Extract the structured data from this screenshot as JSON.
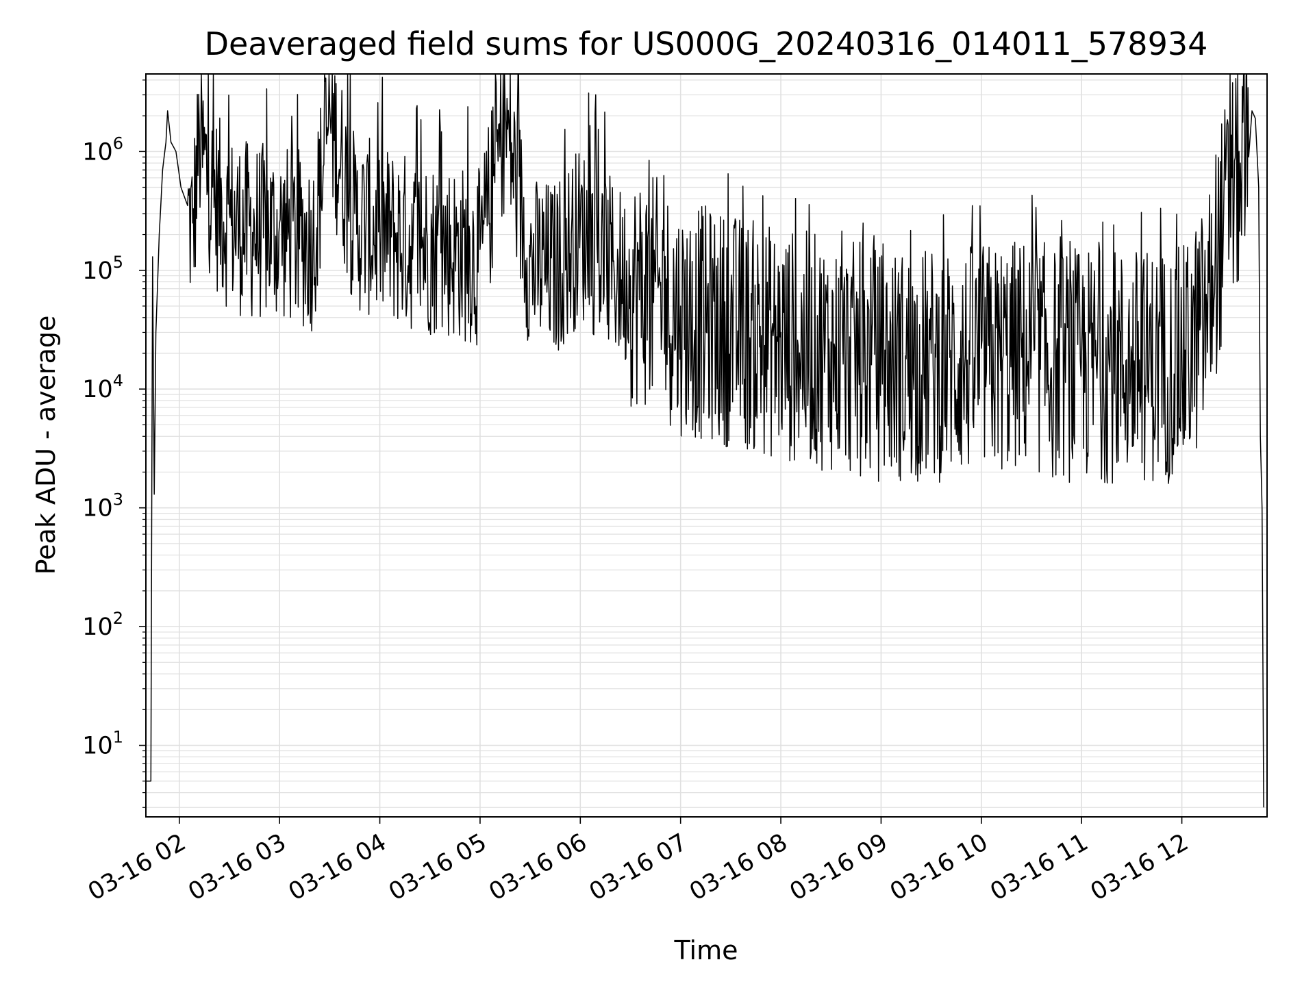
{
  "chart_data": {
    "type": "line",
    "title": "Deaveraged field sums for US000G_20240316_014011_578934",
    "xlabel": "Time",
    "ylabel": "Peak ADU - average",
    "yscale": "log",
    "ylim": [
      2.5,
      4500000
    ],
    "xlim": [
      "2024-03-16T01:40:00",
      "2024-03-16T12:51:00"
    ],
    "x_tick_labels": [
      "03-16 02",
      "03-16 03",
      "03-16 04",
      "03-16 05",
      "03-16 06",
      "03-16 07",
      "03-16 08",
      "03-16 09",
      "03-16 10",
      "03-16 11",
      "03-16 12"
    ],
    "y_tick_labels": [
      {
        "base": "10",
        "exp": "1",
        "value": 10
      },
      {
        "base": "10",
        "exp": "2",
        "value": 100
      },
      {
        "base": "10",
        "exp": "3",
        "value": 1000
      },
      {
        "base": "10",
        "exp": "4",
        "value": 10000
      },
      {
        "base": "10",
        "exp": "5",
        "value": 100000
      },
      {
        "base": "10",
        "exp": "6",
        "value": 1000000
      }
    ],
    "grid": true,
    "grid_color": "#e0e0e0",
    "line_color": "#000000",
    "series": [
      {
        "x": [
          "2024-03-16T01:40:00",
          "2024-03-16T01:42:00",
          "2024-03-16T01:43:00",
          "2024-03-16T01:44:00",
          "2024-03-16T01:45:00",
          "2024-03-16T01:46:00",
          "2024-03-16T01:48:00",
          "2024-03-16T01:50:00",
          "2024-03-16T01:52:00",
          "2024-03-16T01:53:00",
          "2024-03-16T01:55:00",
          "2024-03-16T01:58:00",
          "2024-03-16T02:01:00",
          "2024-03-16T02:05:00",
          "2024-03-16T02:08:00",
          "2024-03-16T02:12:00",
          "2024-03-16T02:20:00",
          "2024-03-16T02:30:00",
          "2024-03-16T02:45:00",
          "2024-03-16T03:00:00",
          "2024-03-16T03:20:00",
          "2024-03-16T03:30:00",
          "2024-03-16T03:45:00",
          "2024-03-16T04:00:00",
          "2024-03-16T04:20:00",
          "2024-03-16T04:40:00",
          "2024-03-16T05:00:00",
          "2024-03-16T05:15:00",
          "2024-03-16T05:30:00",
          "2024-03-16T05:45:00",
          "2024-03-16T06:00:00",
          "2024-03-16T06:20:00",
          "2024-03-16T06:30:00",
          "2024-03-16T06:45:00",
          "2024-03-16T07:00:00",
          "2024-03-16T07:30:00",
          "2024-03-16T08:00:00",
          "2024-03-16T08:30:00",
          "2024-03-16T09:00:00",
          "2024-03-16T09:30:00",
          "2024-03-16T10:00:00",
          "2024-03-16T10:30:00",
          "2024-03-16T10:45:00",
          "2024-03-16T11:00:00",
          "2024-03-16T11:30:00",
          "2024-03-16T12:00:00",
          "2024-03-16T12:15:00",
          "2024-03-16T12:20:00",
          "2024-03-16T12:25:00",
          "2024-03-16T12:30:00",
          "2024-03-16T12:35:00",
          "2024-03-16T12:40:00",
          "2024-03-16T12:42:00",
          "2024-03-16T12:44:00",
          "2024-03-16T12:46:00",
          "2024-03-16T12:47:00",
          "2024-03-16T12:48:00",
          "2024-03-16T12:49:00"
        ],
        "y": [
          5,
          5,
          5,
          130000,
          1300,
          30000,
          200000,
          700000,
          1200000,
          2200000,
          1200000,
          1000000,
          500000,
          350000,
          250000,
          1400000,
          500000,
          300000,
          250000,
          250000,
          200000,
          2400000,
          300000,
          250000,
          200000,
          180000,
          150000,
          2300000,
          130000,
          120000,
          250000,
          120000,
          90000,
          80000,
          50000,
          40000,
          30000,
          25000,
          20000,
          20000,
          22000,
          25000,
          20000,
          20000,
          20000,
          20000,
          50000,
          150000,
          300000,
          600000,
          800000,
          900000,
          2200000,
          1900000,
          500000,
          4000,
          1000,
          3
        ]
      }
    ]
  }
}
